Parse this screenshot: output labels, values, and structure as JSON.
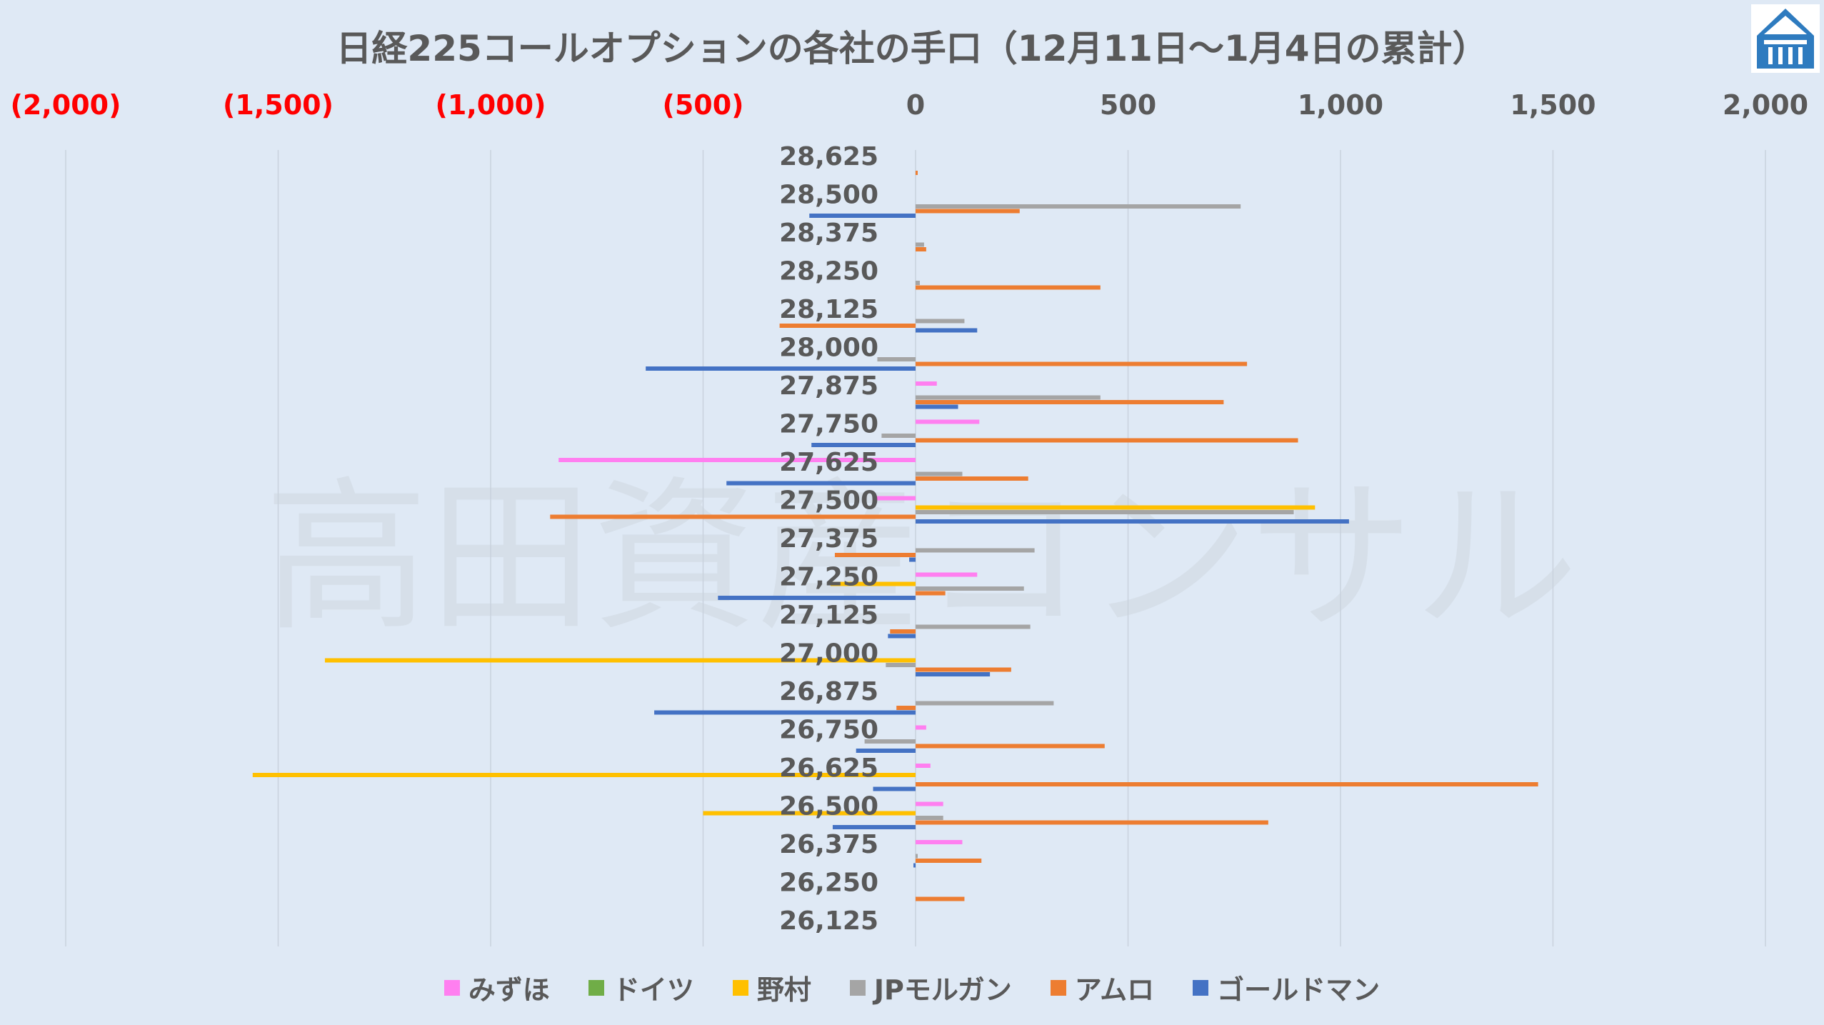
{
  "chart_data": {
    "type": "bar",
    "orientation": "horizontal",
    "title": "日経225コールオプションの各社の手口（12月11日～1月4日の累計）",
    "watermark": "高田資産コンサル",
    "x_ticks": [
      {
        "value": -2000,
        "label": "(2,000)"
      },
      {
        "value": -1500,
        "label": "(1,500)"
      },
      {
        "value": -1000,
        "label": "(1,000)"
      },
      {
        "value": -500,
        "label": "(500)"
      },
      {
        "value": 0,
        "label": "0"
      },
      {
        "value": 500,
        "label": "500"
      },
      {
        "value": 1000,
        "label": "1,000"
      },
      {
        "value": 1500,
        "label": "1,500"
      },
      {
        "value": 2000,
        "label": "2,000"
      }
    ],
    "xlim": [
      -2000,
      2000
    ],
    "negative_tick_color": "#ff0000",
    "positive_tick_color": "#595959",
    "categories": [
      "28,625",
      "28,500",
      "28,375",
      "28,250",
      "28,125",
      "28,000",
      "27,875",
      "27,750",
      "27,625",
      "27,500",
      "27,375",
      "27,250",
      "27,125",
      "27,000",
      "26,875",
      "26,750",
      "26,625",
      "26,500",
      "26,375",
      "26,250",
      "26,125"
    ],
    "series": [
      {
        "name": "みずほ",
        "color": "#ff7ff0",
        "values": [
          0,
          0,
          0,
          0,
          0,
          0,
          50,
          150,
          -840,
          -100,
          0,
          145,
          0,
          0,
          0,
          25,
          35,
          65,
          110,
          0,
          0
        ]
      },
      {
        "name": "ドイツ",
        "color": "#70ad47",
        "values": [
          0,
          0,
          0,
          0,
          0,
          0,
          0,
          0,
          0,
          0,
          0,
          0,
          0,
          0,
          0,
          0,
          0,
          0,
          0,
          0,
          0
        ]
      },
      {
        "name": "野村",
        "color": "#ffc000",
        "values": [
          0,
          0,
          0,
          0,
          0,
          0,
          0,
          0,
          0,
          940,
          0,
          -200,
          0,
          -1390,
          0,
          0,
          -1560,
          -500,
          0,
          0,
          0
        ]
      },
      {
        "name": "JPモルガン",
        "color": "#a5a5a5",
        "values": [
          0,
          765,
          20,
          10,
          115,
          -90,
          435,
          -80,
          110,
          890,
          280,
          255,
          270,
          -70,
          325,
          -120,
          0,
          65,
          5,
          0,
          0
        ]
      },
      {
        "name": "アムロ",
        "color": "#ed7d31",
        "values": [
          5,
          245,
          25,
          435,
          -320,
          780,
          725,
          900,
          265,
          -860,
          -190,
          70,
          -60,
          225,
          -45,
          445,
          1465,
          830,
          155,
          115,
          0
        ]
      },
      {
        "name": "ゴールドマン",
        "color": "#4472c4",
        "values": [
          0,
          -250,
          0,
          0,
          145,
          -635,
          100,
          -245,
          -445,
          1020,
          -15,
          -465,
          -65,
          175,
          -615,
          -140,
          -100,
          -195,
          -5,
          0,
          0
        ]
      }
    ]
  }
}
